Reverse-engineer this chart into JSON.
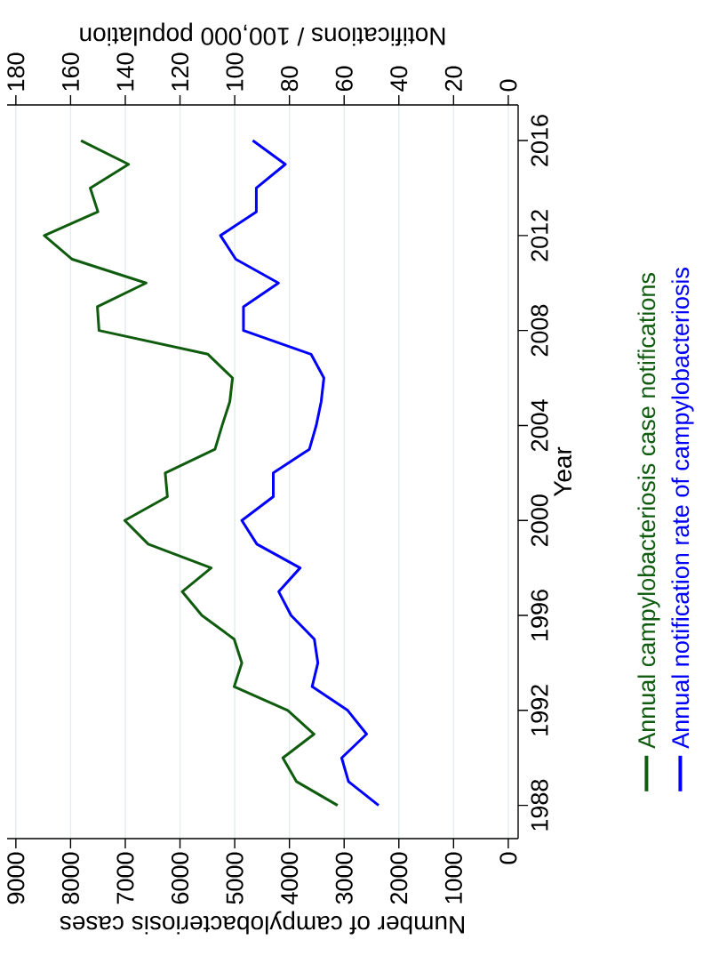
{
  "chart_data": {
    "type": "line",
    "xlabel": "Number of campylobacteriosis cases",
    "ylabel": "Year",
    "x2label": "Notifications / 100,000 population",
    "series": [
      {
        "name": "Annual campylobacteriosis case notifications",
        "color": "#0f5c0f",
        "x": [
          3120,
          3870,
          4120,
          3550,
          4030,
          5010,
          4870,
          5010,
          5600,
          5960,
          5430,
          6580,
          7010,
          6230,
          6270,
          5360,
          5230,
          5090,
          5040,
          5490,
          7480,
          7510,
          6620,
          7970,
          8480,
          7500,
          7640,
          6940,
          7810
        ],
        "values": [
          1988,
          1989,
          1990,
          1991,
          1992,
          1993,
          1994,
          1995,
          1996,
          1997,
          1998,
          1999,
          2000,
          2001,
          2002,
          2003,
          2004,
          2005,
          2006,
          2007,
          2008,
          2009,
          2010,
          2011,
          2012,
          2013,
          2014,
          2015,
          2016
        ]
      },
      {
        "name": "Annual notification rate of campylobacteriosis",
        "color": "#0000ff",
        "axis": "x2",
        "x": [
          47.4,
          58.4,
          60.9,
          51.8,
          58.7,
          71.7,
          69.6,
          70.9,
          79.4,
          83.9,
          76.1,
          91.9,
          97.4,
          85.9,
          85.9,
          72.7,
          70.2,
          68.4,
          67.4,
          72.1,
          96.8,
          96.8,
          84.0,
          99.6,
          105.2,
          92.1,
          92.1,
          81.5,
          93.4
        ],
        "values": [
          1988,
          1989,
          1990,
          1991,
          1992,
          1993,
          1994,
          1995,
          1996,
          1997,
          1998,
          1999,
          2000,
          2001,
          2002,
          2003,
          2004,
          2005,
          2006,
          2007,
          2008,
          2009,
          2010,
          2011,
          2012,
          2013,
          2014,
          2015,
          2016
        ]
      }
    ],
    "xlim": [
      9160,
      -180
    ],
    "xticks": [
      0,
      1000,
      2000,
      3000,
      4000,
      5000,
      6000,
      7000,
      8000,
      9000
    ],
    "x2lim": [
      183.2,
      -3.6
    ],
    "x2ticks": [
      0,
      20,
      40,
      60,
      80,
      100,
      120,
      140,
      160,
      180
    ],
    "ylim": [
      1986.6,
      2017.5
    ],
    "yticks": [
      1988,
      1992,
      1996,
      2000,
      2004,
      2008,
      2012,
      2016
    ],
    "grid": "x",
    "legend": "right",
    "marker": "none",
    "line_style": "solid"
  }
}
